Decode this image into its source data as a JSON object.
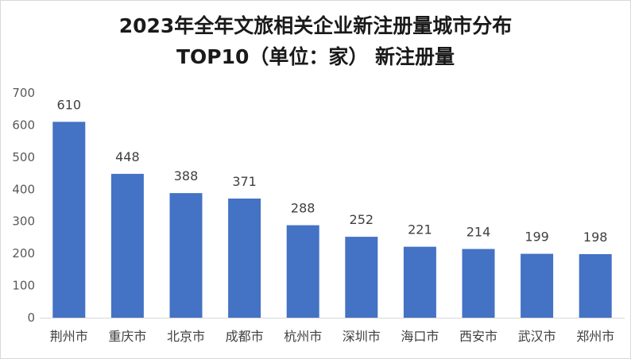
{
  "chart_data": {
    "type": "bar",
    "title": "2023年全年文旅相关企业新注册量城市分布",
    "subtitle": "TOP10（单位：家） 新注册量",
    "categories": [
      "荆州市",
      "重庆市",
      "北京市",
      "成都市",
      "杭州市",
      "深圳市",
      "海口市",
      "西安市",
      "武汉市",
      "郑州市"
    ],
    "values": [
      610,
      448,
      388,
      371,
      288,
      252,
      221,
      214,
      199,
      198
    ],
    "ylim": [
      0,
      700
    ],
    "yticks": [
      0,
      100,
      200,
      300,
      400,
      500,
      600,
      700
    ],
    "grid": false,
    "legend": "none",
    "bar_color": "#4472C4"
  }
}
